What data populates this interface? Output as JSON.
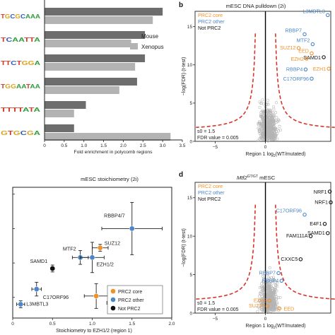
{
  "panels": {
    "b": {
      "letter": "b",
      "title": "mESC DNA pulldown (2i)"
    },
    "d": {
      "letter": "d",
      "title_gene": "Mtf2",
      "title_sup": "GT/GT",
      "title_rest": " mESC"
    },
    "c": {
      "title": "mESC stoichiometry (2i)"
    }
  },
  "legend_prc": {
    "core": "PRC2 core",
    "other": "PRC2 other",
    "not": "Not PRC2"
  },
  "colors": {
    "core": "#f0922b",
    "other": "#4a86c8",
    "not": "#111111",
    "curve": "#d9342b",
    "grey": "#b4b4b4",
    "bar_mouse": "#6d6d6d",
    "bar_xenopus": "#b3b3b3"
  },
  "volcano_text": {
    "ylabel": "−log(FDR) (t-test)",
    "xlabel_pre": "Region 1 log",
    "xlabel_sub": "2",
    "xlabel_post": "(WT/mutated)",
    "s0": "s0 = 1.5",
    "fdr": "FDR value = 0.005",
    "b_ticks_y": [
      "15",
      "10",
      "5",
      "0"
    ],
    "b_ticks_x": [
      "−5",
      "0"
    ],
    "d_ticks_y": [
      "15",
      "10",
      "5",
      "0"
    ],
    "d_ticks_x": [
      "−5",
      "0"
    ]
  },
  "chart_data": [
    {
      "type": "bar",
      "xlabel": "Fold enrichment in polycomb regions",
      "xlim": [
        0,
        3.5
      ],
      "xticks": [
        "0",
        "0.5",
        "1.0",
        "1.5",
        "2.0",
        "2.5",
        "3.0",
        "3.5"
      ],
      "motifs": [
        "TGCGCAAA",
        "TCAATTA",
        "TTCTGGA",
        "TGGAATAA",
        "TTTTATA",
        "GTGCGA"
      ],
      "series": [
        {
          "name": "Mouse",
          "values": [
            3.0,
            2.55,
            2.55,
            2.35,
            1.05,
            0.75
          ]
        },
        {
          "name": "Xenopus",
          "values": [
            2.75,
            2.2,
            2.3,
            1.9,
            0.75,
            3.2
          ]
        }
      ],
      "legend": "top-right"
    },
    {
      "type": "scatter",
      "title": "mESC stoichiometry (2i)",
      "xlabel": "Stoichiometry to EZH1/2 (region 1)",
      "xlim": [
        0,
        2
      ],
      "ylim": [
        0.2,
        2.1
      ],
      "xticks": [
        "0",
        "0.5",
        "1.0",
        "1.5",
        "2.0"
      ],
      "yticks": [
        "0.5",
        "1",
        "1.5",
        "2"
      ],
      "points": [
        {
          "label": "RBBP4/7",
          "x": 1.5,
          "y": 1.5,
          "xerr": 0.38,
          "yerr": 0.38,
          "group": "other"
        },
        {
          "label": "SUZ12",
          "x": 1.1,
          "y": 1.22,
          "xerr": 0.1,
          "yerr": 0.05,
          "group": "core"
        },
        {
          "label": "MTF2",
          "x": 0.85,
          "y": 1.08,
          "xerr": 0.1,
          "yerr": 0.1,
          "group": "other"
        },
        {
          "label": "EZH1/2",
          "x": 1.0,
          "y": 1.08,
          "xerr": 0.15,
          "yerr": 0.22,
          "group": "other"
        },
        {
          "label": "SAMD1",
          "x": 0.5,
          "y": 0.92,
          "xerr": 0.0,
          "yerr": 0.05,
          "group": "not"
        },
        {
          "label": "C17ORF96",
          "x": 0.3,
          "y": 0.62,
          "xerr": 0.06,
          "yerr": 0.1,
          "group": "other"
        },
        {
          "label": "EED",
          "x": 1.05,
          "y": 0.52,
          "xerr": 0.15,
          "yerr": 0.18,
          "group": "core"
        },
        {
          "label": "L3MBTL3",
          "x": 0.1,
          "y": 0.4,
          "xerr": 0.05,
          "yerr": 0.05,
          "group": "other"
        }
      ],
      "legend_labels": [
        "PRC2 core",
        "PRC2 other",
        "Not PRC2"
      ],
      "legend": "bottom-right"
    },
    {
      "type": "scatter",
      "panel": "b",
      "title": "mESC DNA pulldown (2i)",
      "xlim": [
        -7,
        6.5
      ],
      "ylim": [
        0,
        17
      ],
      "labeled_points": [
        {
          "label": "L3MBTL3",
          "x": 6.2,
          "y": 16.5,
          "group": "other"
        },
        {
          "label": "RBBP7",
          "x": 3.9,
          "y": 14.0,
          "group": "other"
        },
        {
          "label": "MTF2",
          "x": 4.7,
          "y": 12.7,
          "group": "other"
        },
        {
          "label": "SUZ12",
          "x": 3.3,
          "y": 12.2,
          "group": "core"
        },
        {
          "label": "EED",
          "x": 4.6,
          "y": 11.5,
          "group": "core"
        },
        {
          "label": "SAMD1",
          "x": 5.8,
          "y": 11.0,
          "group": "not"
        },
        {
          "label": "EZH2",
          "x": 4.1,
          "y": 10.8,
          "group": "core"
        },
        {
          "label": "RBBP4",
          "x": 4.0,
          "y": 9.4,
          "group": "other"
        },
        {
          "label": "EZH1",
          "x": 6.3,
          "y": 9.5,
          "group": "core"
        },
        {
          "label": "C17ORF96",
          "x": 4.6,
          "y": 8.2,
          "group": "other"
        }
      ]
    },
    {
      "type": "scatter",
      "panel": "d",
      "title": "Mtf2 GT/GT mESC",
      "xlim": [
        -7,
        6.5
      ],
      "ylim": [
        0,
        17
      ],
      "labeled_points": [
        {
          "label": "NRF1",
          "x": 6.4,
          "y": 15.8,
          "group": "not"
        },
        {
          "label": "NRF1",
          "x": 6.5,
          "y": 14.4,
          "group": "not"
        },
        {
          "label": "C17ORF96",
          "x": 3.9,
          "y": 12.8,
          "group": "other"
        },
        {
          "label": "E4F1",
          "x": 5.9,
          "y": 11.6,
          "group": "not"
        },
        {
          "label": "SAMD1",
          "x": 6.2,
          "y": 10.4,
          "group": "not"
        },
        {
          "label": "FAM111A",
          "x": 4.5,
          "y": 10.0,
          "group": "not"
        },
        {
          "label": "CXXC5",
          "x": 3.5,
          "y": 7.0,
          "group": "not"
        },
        {
          "label": "RBBP7",
          "x": 1.3,
          "y": 5.2,
          "group": "other"
        },
        {
          "label": "RBBP4",
          "x": 1.6,
          "y": 4.2,
          "group": "other"
        },
        {
          "label": "EZH2",
          "x": 0.4,
          "y": 1.6,
          "group": "core"
        },
        {
          "label": "SUZ12",
          "x": 0.2,
          "y": 0.9,
          "group": "core"
        },
        {
          "label": "EED",
          "x": 1.4,
          "y": 0.6,
          "group": "core"
        }
      ]
    }
  ]
}
